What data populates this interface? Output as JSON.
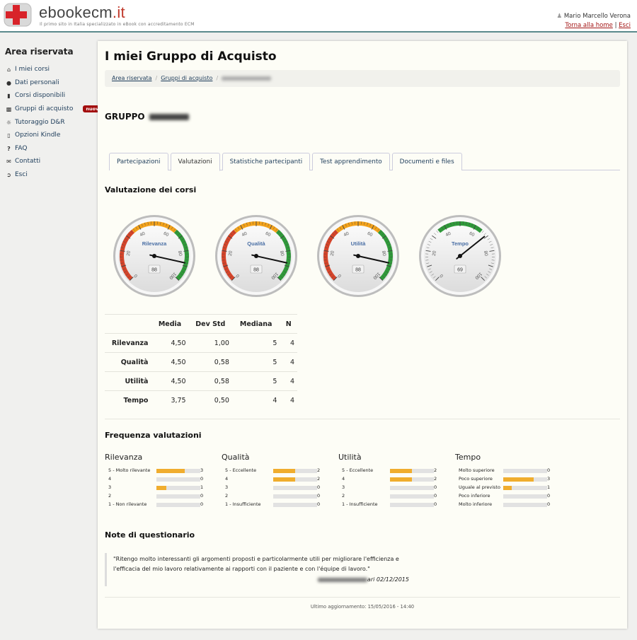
{
  "header": {
    "brand": "ebookecm",
    "brand_tld": ".it",
    "tagline": "Il primo sito in Italia specializzato in eBook con accreditamento ECM",
    "user_name": "Mario Marcello Verona",
    "home_link": "Torna alla home",
    "logout_link": "Esci",
    "separator": "|"
  },
  "sidebar": {
    "title": "Area riservata",
    "items": [
      {
        "label": "I miei corsi",
        "icon": "home-icon"
      },
      {
        "label": "Dati personali",
        "icon": "user-icon"
      },
      {
        "label": "Corsi disponibili",
        "icon": "book-icon"
      },
      {
        "label": "Gruppi di acquisto",
        "icon": "bar-chart-icon",
        "badge": "nuovo"
      },
      {
        "label": "Tutoraggio D&R",
        "icon": "comments-icon"
      },
      {
        "label": "Opzioni Kindle",
        "icon": "tablet-icon"
      },
      {
        "label": "FAQ",
        "icon": "question-icon"
      },
      {
        "label": "Contatti",
        "icon": "envelope-icon"
      },
      {
        "label": "Esci",
        "icon": "sign-out-icon"
      }
    ]
  },
  "page": {
    "title": "I miei Gruppo di Acquisto",
    "breadcrumb": [
      "Area riservata",
      "Gruppi di acquisto"
    ],
    "group_prefix": "GRUPPO"
  },
  "tabs": [
    "Partecipazioni",
    "Valutazioni",
    "Statistiche partecipanti",
    "Test apprendimento",
    "Documenti e files"
  ],
  "active_tab": "Valutazioni",
  "ratings": {
    "title": "Valutazione dei corsi",
    "gauges": [
      {
        "label": "Rilevanza",
        "value": 88
      },
      {
        "label": "Qualità",
        "value": 88
      },
      {
        "label": "Utilità",
        "value": 88
      },
      {
        "label": "Tempo",
        "value": 69
      }
    ],
    "gauge_ticks": [
      "0",
      "20",
      "40",
      "60",
      "80",
      "100"
    ],
    "table": {
      "headers": [
        "",
        "Media",
        "Dev Std",
        "Mediana",
        "N"
      ],
      "rows": [
        [
          "Rilevanza",
          "4,50",
          "1,00",
          "5",
          "4"
        ],
        [
          "Qualità",
          "4,50",
          "0,58",
          "5",
          "4"
        ],
        [
          "Utilità",
          "4,50",
          "0,58",
          "5",
          "4"
        ],
        [
          "Tempo",
          "3,75",
          "0,50",
          "4",
          "4"
        ]
      ]
    }
  },
  "frequency": {
    "title": "Frequenza valutazioni",
    "groups": [
      {
        "name": "Rilevanza",
        "rows": [
          {
            "label": "5 - Molto rilevante",
            "count": "3",
            "fill": 0.65
          },
          {
            "label": "4",
            "count": "0",
            "fill": 0
          },
          {
            "label": "3",
            "count": "1",
            "fill": 0.22
          },
          {
            "label": "2",
            "count": "0",
            "fill": 0
          },
          {
            "label": "1 - Non rilevante",
            "count": "0",
            "fill": 0
          }
        ]
      },
      {
        "name": "Qualità",
        "rows": [
          {
            "label": "5 - Eccellente",
            "count": "2",
            "fill": 0.5
          },
          {
            "label": "4",
            "count": "2",
            "fill": 0.5
          },
          {
            "label": "3",
            "count": "0",
            "fill": 0
          },
          {
            "label": "2",
            "count": "0",
            "fill": 0
          },
          {
            "label": "1 - Insufficiente",
            "count": "0",
            "fill": 0
          }
        ]
      },
      {
        "name": "Utilità",
        "rows": [
          {
            "label": "5 - Eccellente",
            "count": "2",
            "fill": 0.5
          },
          {
            "label": "4",
            "count": "2",
            "fill": 0.5
          },
          {
            "label": "3",
            "count": "0",
            "fill": 0
          },
          {
            "label": "2",
            "count": "0",
            "fill": 0
          },
          {
            "label": "1 - Insufficiente",
            "count": "0",
            "fill": 0
          }
        ]
      },
      {
        "name": "Tempo",
        "rows": [
          {
            "label": "Molto superiore",
            "count": "0",
            "fill": 0
          },
          {
            "label": "Poco superiore",
            "count": "3",
            "fill": 0.7
          },
          {
            "label": "Uguale al previsto",
            "count": "1",
            "fill": 0.2
          },
          {
            "label": "Poco inferiore",
            "count": "0",
            "fill": 0
          },
          {
            "label": "Molto inferiore",
            "count": "0",
            "fill": 0
          }
        ]
      }
    ]
  },
  "notes": {
    "title": "Note di questionario",
    "quote": "\"Ritengo molto interessanti gli argomenti proposti e particolarmente utili per migliorare l'efficienza e l'efficacia del mio lavoro relativamente ai rapporti con il paziente e con l'équipe di lavoro.\"",
    "signature_suffix": "ari 02/12/2015"
  },
  "footer": "Ultimo aggiornamento: 15/05/2016 - 14:40",
  "colors": {
    "accent": "#1d3c5a",
    "badge": "#a30d0d",
    "bar": "#f0ad2e",
    "gauge_red": "#d5442a",
    "gauge_orange": "#f3a21b",
    "gauge_green": "#2f9a3a"
  }
}
